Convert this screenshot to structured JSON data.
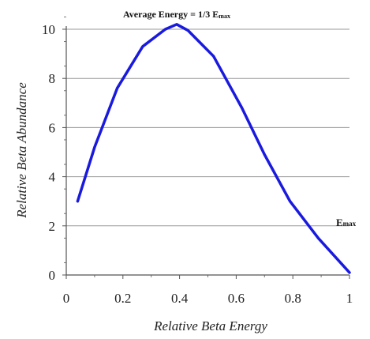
{
  "chart_data": {
    "type": "line",
    "title": "Average Energy = 1/3 Emax",
    "xlabel": "Relative Beta Energy",
    "ylabel": "Relative Beta Abundance",
    "xlim": [
      0,
      1
    ],
    "ylim": [
      0,
      10
    ],
    "x_ticks": [
      "0",
      "0.2",
      "0.4",
      "0.6",
      "0.8",
      "1"
    ],
    "y_ticks": [
      "0",
      "2",
      "4",
      "6",
      "8",
      "10"
    ],
    "grid": true,
    "annotations": [
      {
        "text": "Emax",
        "x": 1.0,
        "y": 1.25
      }
    ],
    "series": [
      {
        "color": "#1a1adf",
        "x": [
          0.04,
          0.1,
          0.18,
          0.27,
          0.35,
          0.39,
          0.43,
          0.52,
          0.62,
          0.7,
          0.79,
          0.89,
          1.0
        ],
        "y": [
          3.0,
          5.2,
          7.6,
          9.3,
          10.0,
          10.2,
          9.95,
          8.9,
          6.8,
          4.9,
          3.0,
          1.5,
          0.1
        ]
      }
    ]
  }
}
